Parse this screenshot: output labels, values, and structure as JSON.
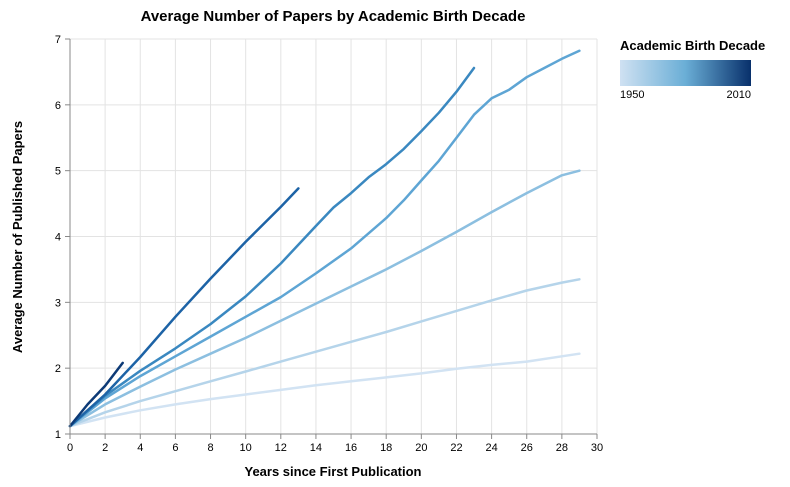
{
  "chart_data": {
    "type": "line",
    "title": "Average Number of Papers by Academic Birth Decade",
    "xlabel": "Years since First Publication",
    "ylabel": "Average Number of Published Papers",
    "xlim": [
      0,
      30
    ],
    "ylim": [
      1,
      7
    ],
    "x_ticks": [
      0,
      2,
      4,
      6,
      8,
      10,
      12,
      14,
      16,
      18,
      20,
      22,
      24,
      26,
      28,
      30
    ],
    "y_ticks": [
      1,
      2,
      3,
      4,
      5,
      6,
      7
    ],
    "grid": true,
    "legend": {
      "title": "Academic Birth Decade",
      "type": "gradient",
      "min_label": "1950",
      "max_label": "2010",
      "colors": [
        "#cfe1f2",
        "#6aaed6",
        "#08306b"
      ],
      "placement": "top-right"
    },
    "series": [
      {
        "color": "#d2e3f3",
        "points": [
          [
            0,
            1.12
          ],
          [
            2,
            1.25
          ],
          [
            4,
            1.36
          ],
          [
            6,
            1.45
          ],
          [
            8,
            1.53
          ],
          [
            10,
            1.6
          ],
          [
            12,
            1.67
          ],
          [
            14,
            1.74
          ],
          [
            16,
            1.8
          ],
          [
            18,
            1.86
          ],
          [
            20,
            1.92
          ],
          [
            22,
            1.99
          ],
          [
            24,
            2.05
          ],
          [
            26,
            2.1
          ],
          [
            28,
            2.18
          ],
          [
            29,
            2.22
          ]
        ]
      },
      {
        "color": "#b5d4ea",
        "points": [
          [
            0,
            1.12
          ],
          [
            2,
            1.33
          ],
          [
            4,
            1.5
          ],
          [
            6,
            1.65
          ],
          [
            8,
            1.8
          ],
          [
            10,
            1.95
          ],
          [
            12,
            2.1
          ],
          [
            14,
            2.25
          ],
          [
            16,
            2.4
          ],
          [
            18,
            2.55
          ],
          [
            20,
            2.71
          ],
          [
            22,
            2.87
          ],
          [
            24,
            3.03
          ],
          [
            26,
            3.18
          ],
          [
            28,
            3.3
          ],
          [
            29,
            3.35
          ]
        ]
      },
      {
        "color": "#8cbfe0",
        "points": [
          [
            0,
            1.12
          ],
          [
            2,
            1.45
          ],
          [
            4,
            1.72
          ],
          [
            6,
            1.98
          ],
          [
            8,
            2.22
          ],
          [
            10,
            2.46
          ],
          [
            12,
            2.72
          ],
          [
            14,
            2.98
          ],
          [
            16,
            3.24
          ],
          [
            18,
            3.5
          ],
          [
            20,
            3.78
          ],
          [
            22,
            4.07
          ],
          [
            24,
            4.37
          ],
          [
            26,
            4.66
          ],
          [
            28,
            4.93
          ],
          [
            29,
            5.0
          ]
        ]
      },
      {
        "color": "#5ea5d4",
        "points": [
          [
            0,
            1.12
          ],
          [
            2,
            1.54
          ],
          [
            4,
            1.88
          ],
          [
            6,
            2.18
          ],
          [
            8,
            2.48
          ],
          [
            10,
            2.78
          ],
          [
            12,
            3.08
          ],
          [
            14,
            3.44
          ],
          [
            16,
            3.82
          ],
          [
            18,
            4.28
          ],
          [
            19,
            4.55
          ],
          [
            20,
            4.85
          ],
          [
            21,
            5.15
          ],
          [
            22,
            5.5
          ],
          [
            23,
            5.85
          ],
          [
            24,
            6.1
          ],
          [
            25,
            6.23
          ],
          [
            26,
            6.42
          ],
          [
            27,
            6.56
          ],
          [
            28,
            6.7
          ],
          [
            29,
            6.82
          ]
        ]
      },
      {
        "color": "#3a88c0",
        "points": [
          [
            0,
            1.12
          ],
          [
            2,
            1.58
          ],
          [
            4,
            1.96
          ],
          [
            6,
            2.3
          ],
          [
            8,
            2.67
          ],
          [
            10,
            3.09
          ],
          [
            12,
            3.59
          ],
          [
            14,
            4.16
          ],
          [
            15,
            4.44
          ],
          [
            16,
            4.66
          ],
          [
            17,
            4.9
          ],
          [
            18,
            5.1
          ],
          [
            19,
            5.33
          ],
          [
            20,
            5.6
          ],
          [
            21,
            5.88
          ],
          [
            22,
            6.2
          ],
          [
            23,
            6.56
          ]
        ]
      },
      {
        "color": "#1d63a6",
        "points": [
          [
            0,
            1.12
          ],
          [
            2,
            1.6
          ],
          [
            4,
            2.17
          ],
          [
            6,
            2.78
          ],
          [
            8,
            3.36
          ],
          [
            10,
            3.92
          ],
          [
            12,
            4.45
          ],
          [
            13,
            4.73
          ]
        ]
      },
      {
        "color": "#0d3a76",
        "points": [
          [
            0,
            1.12
          ],
          [
            1,
            1.45
          ],
          [
            2,
            1.73
          ],
          [
            3,
            2.08
          ]
        ]
      }
    ]
  }
}
